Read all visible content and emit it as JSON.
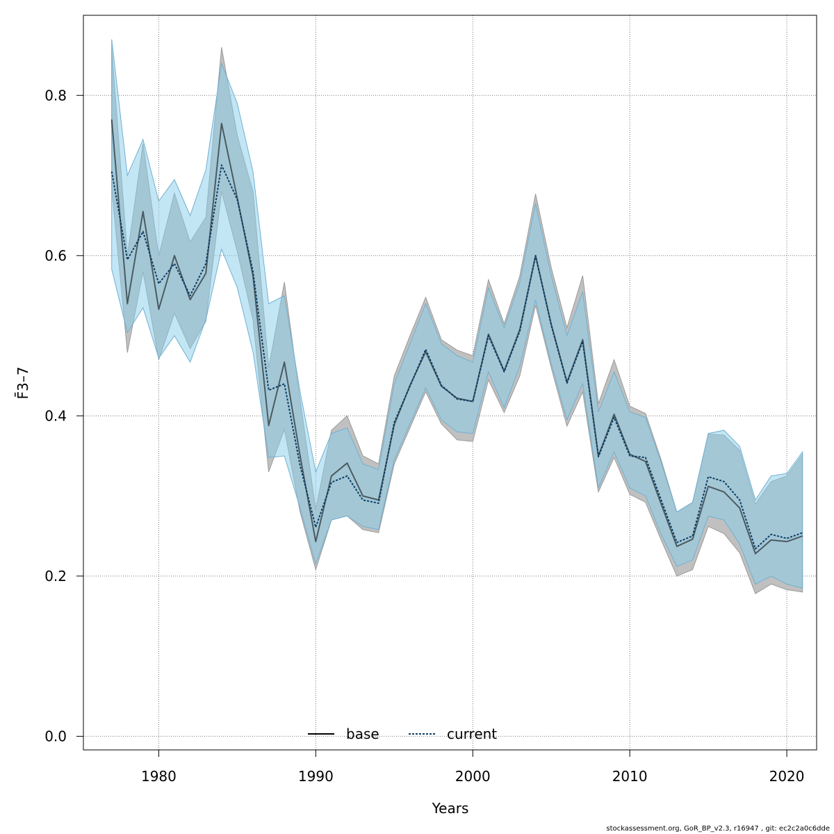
{
  "chart_data": {
    "type": "line",
    "xlabel": "Years",
    "ylabel": "F̄3–7",
    "xlim": [
      1975.2,
      2021.9
    ],
    "ylim": [
      -0.017,
      0.9
    ],
    "x_ticks": [
      1980,
      1990,
      2000,
      2010,
      2020
    ],
    "y_ticks": [
      0.0,
      0.2,
      0.4,
      0.6,
      0.8
    ],
    "y_tick_labels": [
      "0.0",
      "0.2",
      "0.4",
      "0.6",
      "0.8"
    ],
    "grid": true,
    "legend_position": "bottom-center",
    "x": [
      1977,
      1978,
      1979,
      1980,
      1981,
      1982,
      1983,
      1984,
      1985,
      1986,
      1987,
      1988,
      1989,
      1990,
      1991,
      1992,
      1993,
      1994,
      1995,
      1996,
      1997,
      1998,
      1999,
      2000,
      2001,
      2002,
      2003,
      2004,
      2005,
      2006,
      2007,
      2008,
      2009,
      2010,
      2011,
      2012,
      2013,
      2014,
      2015,
      2016,
      2017,
      2018,
      2019,
      2020,
      2021
    ],
    "series": [
      {
        "name": "base",
        "color": "#000000",
        "band_color": "#bdbdbd",
        "values": [
          0.77,
          0.54,
          0.655,
          0.533,
          0.6,
          0.545,
          0.578,
          0.765,
          0.672,
          0.575,
          0.388,
          0.467,
          0.35,
          0.243,
          0.325,
          0.341,
          0.3,
          0.295,
          0.389,
          0.438,
          0.48,
          0.437,
          0.422,
          0.418,
          0.502,
          0.456,
          0.508,
          0.6,
          0.514,
          0.442,
          0.495,
          0.35,
          0.402,
          0.352,
          0.343,
          0.29,
          0.237,
          0.246,
          0.312,
          0.305,
          0.285,
          0.228,
          0.245,
          0.243,
          0.25
        ],
        "lower": [
          0.685,
          0.479,
          0.58,
          0.47,
          0.528,
          0.484,
          0.518,
          0.68,
          0.605,
          0.52,
          0.33,
          0.383,
          0.28,
          0.208,
          0.27,
          0.275,
          0.258,
          0.254,
          0.34,
          0.385,
          0.43,
          0.39,
          0.37,
          0.368,
          0.445,
          0.404,
          0.45,
          0.538,
          0.46,
          0.387,
          0.43,
          0.305,
          0.348,
          0.302,
          0.292,
          0.245,
          0.2,
          0.208,
          0.262,
          0.253,
          0.229,
          0.178,
          0.19,
          0.183,
          0.18
        ],
        "upper": [
          0.86,
          0.6,
          0.74,
          0.6,
          0.678,
          0.617,
          0.648,
          0.86,
          0.75,
          0.68,
          0.46,
          0.567,
          0.42,
          0.283,
          0.382,
          0.4,
          0.35,
          0.34,
          0.45,
          0.5,
          0.548,
          0.495,
          0.482,
          0.475,
          0.57,
          0.515,
          0.575,
          0.677,
          0.585,
          0.51,
          0.575,
          0.415,
          0.47,
          0.412,
          0.403,
          0.345,
          0.28,
          0.292,
          0.377,
          0.376,
          0.357,
          0.29,
          0.318,
          0.325,
          0.352
        ]
      },
      {
        "name": "current",
        "color": "#0b3d63",
        "band_color": "#87ceeb",
        "values": [
          0.705,
          0.595,
          0.63,
          0.565,
          0.59,
          0.55,
          0.59,
          0.713,
          0.67,
          0.58,
          0.432,
          0.44,
          0.338,
          0.261,
          0.317,
          0.325,
          0.295,
          0.291,
          0.392,
          0.437,
          0.483,
          0.438,
          0.421,
          0.418,
          0.5,
          0.455,
          0.506,
          0.6,
          0.513,
          0.441,
          0.493,
          0.349,
          0.398,
          0.35,
          0.348,
          0.295,
          0.242,
          0.25,
          0.324,
          0.318,
          0.295,
          0.234,
          0.252,
          0.247,
          0.254
        ],
        "lower": [
          0.583,
          0.504,
          0.535,
          0.472,
          0.5,
          0.467,
          0.52,
          0.608,
          0.56,
          0.48,
          0.348,
          0.35,
          0.285,
          0.215,
          0.27,
          0.275,
          0.262,
          0.258,
          0.345,
          0.39,
          0.435,
          0.395,
          0.38,
          0.378,
          0.455,
          0.41,
          0.462,
          0.545,
          0.465,
          0.395,
          0.44,
          0.31,
          0.355,
          0.31,
          0.3,
          0.252,
          0.212,
          0.22,
          0.275,
          0.27,
          0.24,
          0.19,
          0.2,
          0.19,
          0.185
        ],
        "upper": [
          0.87,
          0.7,
          0.745,
          0.668,
          0.695,
          0.65,
          0.707,
          0.84,
          0.79,
          0.705,
          0.54,
          0.55,
          0.43,
          0.33,
          0.378,
          0.385,
          0.34,
          0.333,
          0.44,
          0.49,
          0.54,
          0.49,
          0.475,
          0.467,
          0.56,
          0.51,
          0.567,
          0.665,
          0.575,
          0.5,
          0.555,
          0.405,
          0.455,
          0.405,
          0.398,
          0.342,
          0.28,
          0.292,
          0.378,
          0.382,
          0.362,
          0.295,
          0.325,
          0.328,
          0.355
        ]
      }
    ]
  },
  "footer_text": "stockassessment.org, GoR_BP_v2.3, r16947 , git: ec2c2a0c6dde"
}
